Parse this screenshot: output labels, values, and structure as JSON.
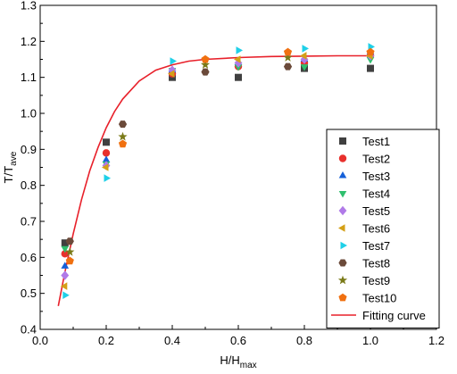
{
  "chart_data": {
    "type": "scatter",
    "xlabel": {
      "main": "H/H",
      "sub": "max"
    },
    "ylabel": {
      "main": "T/T",
      "sub": "ave"
    },
    "xlim": [
      0.0,
      1.2
    ],
    "ylim": [
      0.4,
      1.3
    ],
    "xticks": [
      "0.0",
      "0.2",
      "0.4",
      "0.6",
      "0.8",
      "1.0",
      "1.2"
    ],
    "yticks": [
      "0.4",
      "0.5",
      "0.6",
      "0.7",
      "0.8",
      "0.9",
      "1.0",
      "1.1",
      "1.2",
      "1.3"
    ],
    "grid": false,
    "legend_position": "bottom-right",
    "series": [
      {
        "name": "Test1",
        "marker": "square",
        "color": "#404040",
        "x": [
          0.075,
          0.2,
          0.4,
          0.6,
          0.8,
          1.0
        ],
        "y": [
          0.64,
          0.92,
          1.1,
          1.1,
          1.125,
          1.125
        ]
      },
      {
        "name": "Test2",
        "marker": "circle",
        "color": "#e8302c",
        "x": [
          0.075,
          0.2,
          0.4,
          0.6,
          0.8,
          1.0
        ],
        "y": [
          0.61,
          0.89,
          1.11,
          1.13,
          1.14,
          1.16
        ]
      },
      {
        "name": "Test3",
        "marker": "triangle-up",
        "color": "#1560d8",
        "x": [
          0.075,
          0.2,
          0.4,
          0.6,
          0.8,
          1.0
        ],
        "y": [
          0.575,
          0.87,
          1.12,
          1.14,
          1.15,
          1.17
        ]
      },
      {
        "name": "Test4",
        "marker": "triangle-down",
        "color": "#2fbf6e",
        "x": [
          0.075,
          0.2,
          0.4,
          0.6,
          0.8,
          1.0
        ],
        "y": [
          0.625,
          0.86,
          1.12,
          1.13,
          1.13,
          1.15
        ]
      },
      {
        "name": "Test5",
        "marker": "diamond",
        "color": "#b07ae8",
        "x": [
          0.075,
          0.2,
          0.4,
          0.6,
          0.8,
          1.0
        ],
        "y": [
          0.55,
          0.855,
          1.12,
          1.14,
          1.15,
          1.16
        ]
      },
      {
        "name": "Test6",
        "marker": "triangle-left",
        "color": "#d4a017",
        "x": [
          0.075,
          0.2,
          0.4,
          0.6,
          0.8,
          1.0
        ],
        "y": [
          0.52,
          0.85,
          1.11,
          1.15,
          1.16,
          1.16
        ]
      },
      {
        "name": "Test7",
        "marker": "triangle-right",
        "color": "#1fd0e8",
        "x": [
          0.075,
          0.2,
          0.4,
          0.6,
          0.8,
          1.0
        ],
        "y": [
          0.495,
          0.82,
          1.145,
          1.175,
          1.18,
          1.185
        ]
      },
      {
        "name": "Test8",
        "marker": "hexagon",
        "color": "#6b4a3a",
        "x": [
          0.09,
          0.25,
          0.5,
          0.75
        ],
        "y": [
          0.645,
          0.97,
          1.115,
          1.13
        ]
      },
      {
        "name": "Test9",
        "marker": "star",
        "color": "#7a7a18",
        "x": [
          0.09,
          0.25,
          0.5,
          0.75
        ],
        "y": [
          0.615,
          0.935,
          1.135,
          1.155
        ]
      },
      {
        "name": "Test10",
        "marker": "pentagon",
        "color": "#f07010",
        "x": [
          0.09,
          0.25,
          0.5,
          0.75,
          1.0
        ],
        "y": [
          0.59,
          0.915,
          1.15,
          1.17,
          1.17
        ]
      }
    ],
    "fit": {
      "name": "Fitting curve",
      "color": "#e8202a",
      "x": [
        0.055,
        0.075,
        0.1,
        0.125,
        0.15,
        0.175,
        0.2,
        0.225,
        0.25,
        0.3,
        0.35,
        0.4,
        0.45,
        0.5,
        0.6,
        0.7,
        0.8,
        0.9,
        1.0
      ],
      "y": [
        0.465,
        0.56,
        0.665,
        0.76,
        0.84,
        0.905,
        0.96,
        1.005,
        1.04,
        1.09,
        1.12,
        1.135,
        1.145,
        1.15,
        1.155,
        1.158,
        1.159,
        1.16,
        1.16
      ]
    }
  }
}
